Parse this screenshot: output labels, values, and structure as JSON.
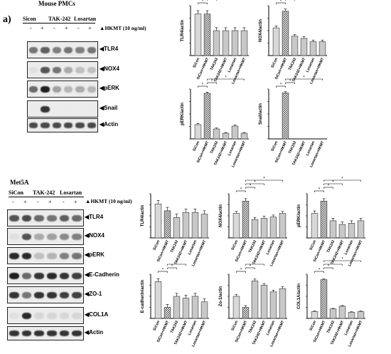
{
  "panel_label": "a)",
  "top": {
    "title": "Mouse PMCs",
    "groups": [
      "Sicon",
      "TAK-242",
      "Losartan"
    ],
    "hkmt_label": "HKMT (10 ng/ml)",
    "signs": [
      "-",
      "+",
      "-",
      "+",
      "-",
      "+"
    ],
    "rows": [
      "TLR4",
      "NOX4",
      "pERK",
      "Snail",
      "Actin"
    ]
  },
  "bottom": {
    "title": "Met5A",
    "groups": [
      "SiCon",
      "TAK-242",
      "Losartan"
    ],
    "hkmt_label": "HKMT (10 ng/ml)",
    "signs": [
      "-",
      "+",
      "-",
      "+",
      "-",
      "+"
    ],
    "rows": [
      "TLR4",
      "NOX4",
      "pERK",
      "E-Cadherin",
      "ZO-1",
      "COL1A",
      "Actin"
    ]
  },
  "chart_data": [
    {
      "type": "bar",
      "ylabel": "TLR4/actin",
      "categories": [
        "SiCon",
        "SiCon+HKMT",
        "TAK242",
        "TAK242+HKMT",
        "Losartan",
        "Losartan+HKMT"
      ],
      "values": [
        1.0,
        1.0,
        0.6,
        0.6,
        0.6,
        0.6
      ],
      "errors": [
        0.08,
        0.08,
        0.07,
        0.07,
        0.07,
        0.07
      ],
      "ylim": [
        0,
        1.2
      ],
      "grid": false
    },
    {
      "type": "bar",
      "ylabel": "NOX4/actin",
      "categories": [
        "SiCon",
        "SiCon+HKMT",
        "TAK242",
        "TAK242+HKMT",
        "Losartan",
        "Losartan+HKMT"
      ],
      "values": [
        1.0,
        1.6,
        0.7,
        0.62,
        0.5,
        0.5
      ],
      "errors": [
        0.07,
        0.08,
        0.06,
        0.06,
        0.06,
        0.06
      ],
      "ylim": [
        0,
        1.8
      ],
      "grid": false
    },
    {
      "type": "bar",
      "ylabel": "pERK/actin",
      "categories": [
        "SiCon",
        "SiCon+HKMT",
        "TAK242",
        "TAK242+HKMT",
        "Losartan",
        "Losartan+HKMT"
      ],
      "values": [
        1.0,
        3.2,
        0.7,
        0.4,
        0.9,
        0.4
      ],
      "errors": [
        0.08,
        0.08,
        0.07,
        0.05,
        0.07,
        0.05
      ],
      "ylim": [
        0,
        3.5
      ],
      "grid": false
    },
    {
      "type": "bar",
      "ylabel": "Snail/actin",
      "categories": [
        "SiCon",
        "SiCon+HKMT",
        "TAK242",
        "TAK242+HKMT",
        "Losartan",
        "Losartan+HKMT"
      ],
      "values": [
        0.0,
        240,
        0.0,
        0.0,
        0.0,
        0.0
      ],
      "errors": [
        0,
        6,
        0,
        0,
        0,
        0
      ],
      "ylim": [
        0,
        260
      ],
      "grid": false
    },
    {
      "type": "bar",
      "ylabel": "TLR4/actin",
      "categories": [
        "SiCon",
        "SiCon+HKMT",
        "TAK242",
        "TAK242+HKMT",
        "Losartan",
        "Losartan+HKMT"
      ],
      "values": [
        1.0,
        0.8,
        0.6,
        0.75,
        0.75,
        0.7
      ],
      "errors": [
        0.1,
        0.1,
        0.1,
        0.1,
        0.1,
        0.1
      ],
      "ylim": [
        0,
        1.3
      ],
      "grid": false
    },
    {
      "type": "bar",
      "ylabel": "NOX4/actin",
      "categories": [
        "SiCon",
        "SiCon+HKMT",
        "TAK242",
        "TAK242+HKMT",
        "Losartan",
        "Losartan+HKMT"
      ],
      "values": [
        1.0,
        1.5,
        0.75,
        0.8,
        0.85,
        1.0
      ],
      "errors": [
        0.08,
        0.1,
        0.08,
        0.08,
        0.08,
        0.08
      ],
      "ylim": [
        0,
        1.8
      ],
      "grid": false
    },
    {
      "type": "bar",
      "ylabel": "pERK/actin",
      "categories": [
        "SiCon",
        "SiCon+HKMT",
        "TAK242",
        "TAK242+HKMT",
        "Losartan",
        "Losartan+HKMT"
      ],
      "values": [
        1.0,
        1.5,
        0.7,
        0.55,
        0.6,
        0.7
      ],
      "errors": [
        0.1,
        0.1,
        0.1,
        0.1,
        0.1,
        0.1
      ],
      "ylim": [
        0,
        1.8
      ],
      "grid": false
    },
    {
      "type": "bar",
      "ylabel": "E-cadherin/actin",
      "categories": [
        "SiCon",
        "SiCon+HKMT",
        "TAK242",
        "TAK242+HKMT",
        "Losartan",
        "Losartan+HKMT"
      ],
      "values": [
        1.0,
        0.3,
        0.6,
        0.55,
        0.6,
        0.45
      ],
      "errors": [
        0.08,
        0.08,
        0.08,
        0.08,
        0.08,
        0.08
      ],
      "ylim": [
        0,
        1.2
      ],
      "grid": false
    },
    {
      "type": "bar",
      "ylabel": "Zo-1/actin",
      "categories": [
        "SiCon",
        "SiCon+HKMT",
        "TAK242",
        "TAK242+HKMT",
        "Losartan",
        "Losartan+HKMT"
      ],
      "values": [
        1.0,
        0.5,
        1.7,
        1.5,
        1.2,
        1.35
      ],
      "errors": [
        0.08,
        0.08,
        0.08,
        0.08,
        0.08,
        0.08
      ],
      "ylim": [
        0,
        2.0
      ],
      "grid": false
    },
    {
      "type": "bar",
      "ylabel": "COL1A/actin",
      "categories": [
        "SiCon",
        "SiCon+HKMT",
        "TAK242",
        "TAK242+HKMT",
        "Losartan",
        "Losartan+HKMT"
      ],
      "values": [
        1.0,
        5.7,
        1.4,
        1.8,
        0.9,
        1.0
      ],
      "errors": [
        0.08,
        0.1,
        0.08,
        0.08,
        0.08,
        0.08
      ],
      "ylim": [
        0,
        6.5
      ],
      "grid": false
    }
  ],
  "sig_mark": "*"
}
